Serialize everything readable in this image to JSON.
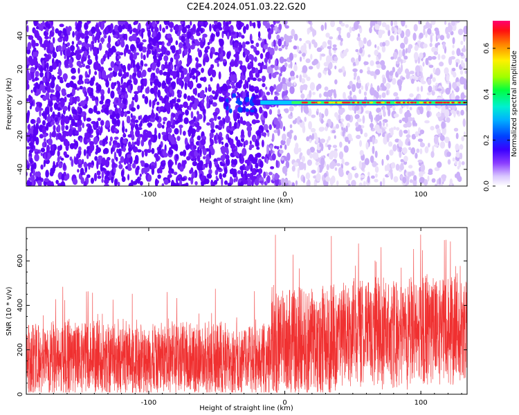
{
  "title": "C2E4.2024.051.03.22.G20",
  "colors": {
    "snr_line": "#f03030",
    "purple_low": "#e4d4fa",
    "purple_high": "#5a00f5"
  },
  "chart_data": [
    {
      "type": "heatmap",
      "xlabel": "Height of straight line (km)",
      "ylabel": "Frequency (Hz)",
      "xlim": [
        -190,
        134
      ],
      "ylim": [
        -50,
        49
      ],
      "xticks": [
        -100,
        0,
        100
      ],
      "yticks": [
        -40,
        -20,
        0,
        20,
        40
      ],
      "colorbar": {
        "label": "Normalized spectral amplitude",
        "range": [
          0.0,
          0.72
        ],
        "ticks": [
          0.0,
          0.2,
          0.4,
          0.6
        ],
        "tick_labels": [
          "0.0",
          "0.2",
          "0.4",
          "0.6"
        ]
      },
      "signal_line": {
        "frequency": 0,
        "x_start": -30,
        "x_end": 134,
        "amplitude": 0.6
      },
      "noise_amplitude": {
        "x_lt_-20": 0.15,
        "x_gt_0": 0.05
      }
    },
    {
      "type": "line",
      "xlabel": "Height of straight line (km)",
      "ylabel": "SNR (10 * v/v)",
      "xlim": [
        -190,
        134
      ],
      "ylim": [
        0,
        750
      ],
      "xticks": [
        -100,
        0,
        100
      ],
      "yticks": [
        0,
        200,
        400,
        600
      ],
      "series": [
        {
          "segment": "x<-10",
          "mean": 160,
          "typical_peak": 330,
          "max_peak": 485
        },
        {
          "segment": "-10<x<40",
          "mean": 230,
          "typical_peak": 500,
          "max_peak": 720
        },
        {
          "segment": "x>40",
          "mean": 290,
          "typical_peak": 540,
          "max_peak": 720
        }
      ]
    }
  ]
}
